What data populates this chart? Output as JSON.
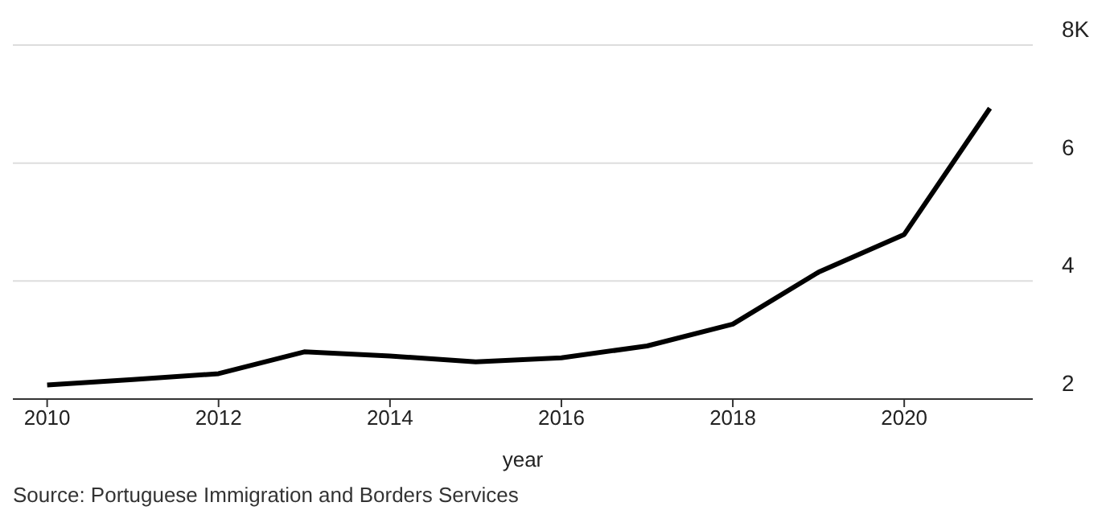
{
  "chart_data": {
    "type": "line",
    "xlabel": "year",
    "annotations": [
      "Source: Portuguese Immigration and Borders Services"
    ],
    "x": [
      2010,
      2011,
      2012,
      2013,
      2014,
      2015,
      2016,
      2017,
      2018,
      2019,
      2020,
      2021
    ],
    "series": [
      {
        "color": "#000000",
        "values": [
          2.24,
          2.33,
          2.43,
          2.8,
          2.73,
          2.63,
          2.7,
          2.9,
          3.27,
          4.15,
          4.79,
          6.93
        ]
      }
    ],
    "xlim": [
      2009.6,
      2021.5
    ],
    "xticks": [
      2010,
      2012,
      2014,
      2016,
      2018,
      2020
    ],
    "ylim": [
      2,
      8
    ],
    "yticks": [
      2,
      4,
      6,
      {
        "value": 8,
        "label": "8K"
      }
    ],
    "grid": "y",
    "legend": false,
    "marker": "none",
    "line_style": "solid"
  }
}
